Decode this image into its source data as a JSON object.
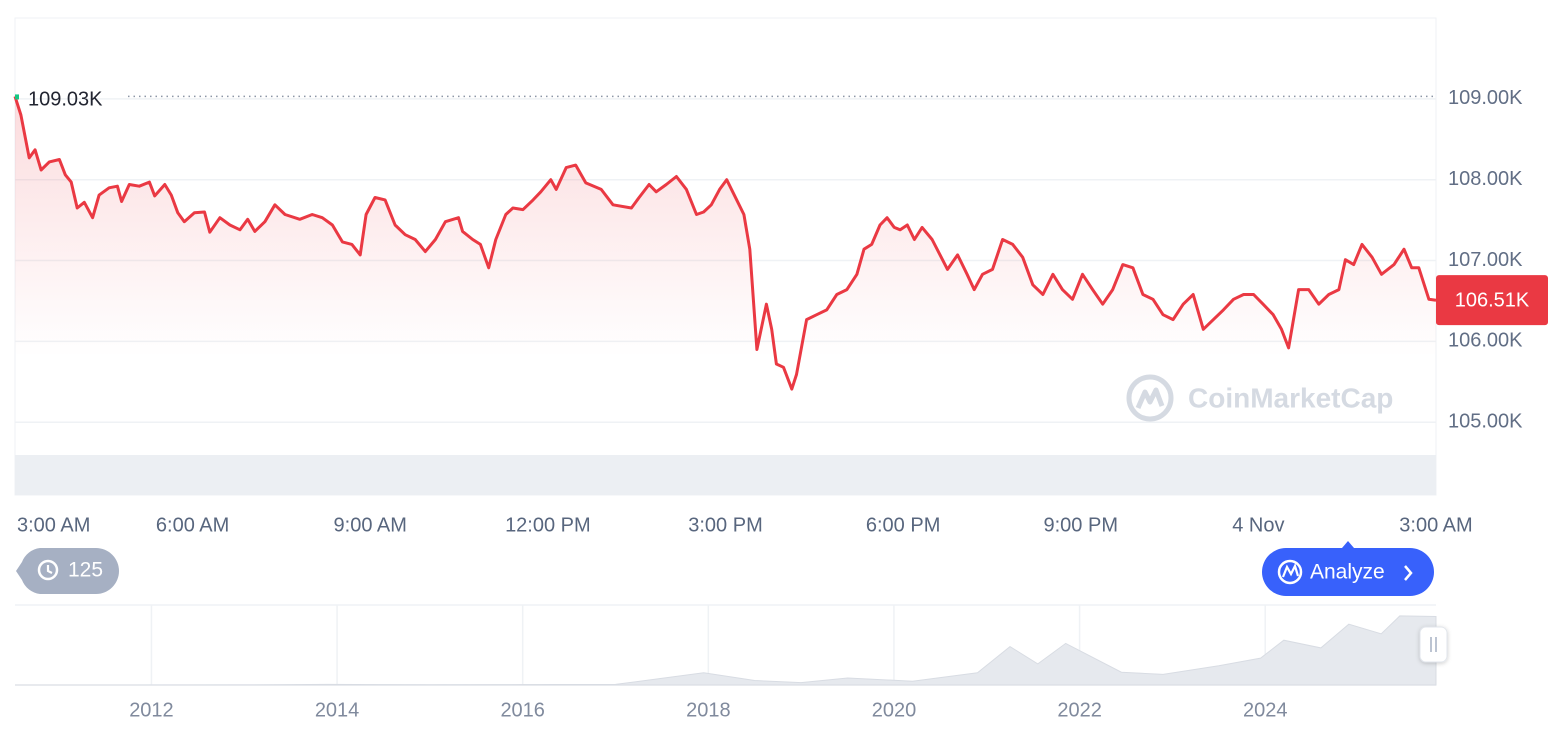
{
  "chart_data": [
    {
      "type": "line",
      "color": "#ea3943",
      "x": [
        0.0,
        0.1,
        0.24,
        0.34,
        0.44,
        0.58,
        0.75,
        0.85,
        0.95,
        1.05,
        1.17,
        1.31,
        1.42,
        1.59,
        1.73,
        1.8,
        1.93,
        2.1,
        2.27,
        2.36,
        2.53,
        2.64,
        2.75,
        2.86,
        3.03,
        3.2,
        3.29,
        3.46,
        3.63,
        3.8,
        3.93,
        4.05,
        4.22,
        4.39,
        4.56,
        4.81,
        5.02,
        5.19,
        5.36,
        5.53,
        5.69,
        5.83,
        5.93,
        6.08,
        6.25,
        6.42,
        6.59,
        6.76,
        6.93,
        7.1,
        7.27,
        7.49,
        7.56,
        7.73,
        7.86,
        8.0,
        8.12,
        8.29,
        8.41,
        8.58,
        8.75,
        8.88,
        9.05,
        9.14,
        9.31,
        9.47,
        9.64,
        9.9,
        10.1,
        10.41,
        10.54,
        10.71,
        10.83,
        11.0,
        11.17,
        11.34,
        11.51,
        11.63,
        11.76,
        11.9,
        12.02,
        12.19,
        12.31,
        12.41,
        12.53,
        12.69,
        12.78,
        12.86,
        12.98,
        13.12,
        13.2,
        13.37,
        13.54,
        13.71,
        13.88,
        14.05,
        14.22,
        14.34,
        14.47,
        14.61,
        14.73,
        14.85,
        14.95,
        15.07,
        15.19,
        15.32,
        15.49,
        15.75,
        15.92,
        16.08,
        16.2,
        16.34,
        16.51,
        16.68,
        16.85,
        17.02,
        17.19,
        17.36,
        17.53,
        17.69,
        17.86,
        18.03,
        18.2,
        18.37,
        18.54,
        18.71,
        18.88,
        19.05,
        19.22,
        19.39,
        19.56,
        19.73,
        19.9,
        20.07,
        20.24,
        20.41,
        20.58,
        20.75,
        20.92,
        21.08,
        21.25,
        21.39,
        21.51,
        21.68,
        21.85,
        22.02,
        22.19,
        22.36,
        22.47,
        22.61,
        22.75,
        22.92,
        23.08,
        23.29,
        23.46,
        23.59,
        23.71,
        23.88,
        24.0
      ],
      "values": [
        109030,
        108800,
        108270,
        108370,
        108120,
        108220,
        108250,
        108060,
        107970,
        107650,
        107720,
        107530,
        107810,
        107900,
        107920,
        107730,
        107940,
        107920,
        107970,
        107800,
        107940,
        107810,
        107590,
        107480,
        107590,
        107600,
        107350,
        107530,
        107440,
        107380,
        107510,
        107360,
        107480,
        107690,
        107570,
        107510,
        107570,
        107530,
        107440,
        107230,
        107200,
        107070,
        107570,
        107780,
        107750,
        107440,
        107320,
        107260,
        107110,
        107260,
        107480,
        107530,
        107360,
        107260,
        107200,
        106910,
        107260,
        107570,
        107650,
        107630,
        107750,
        107850,
        108000,
        107880,
        108150,
        108180,
        107960,
        107880,
        107690,
        107650,
        107780,
        107940,
        107850,
        107940,
        108040,
        107880,
        107570,
        107600,
        107690,
        107880,
        108000,
        107750,
        107570,
        107140,
        105900,
        106460,
        106150,
        105720,
        105680,
        105410,
        105590,
        106270,
        106330,
        106390,
        106580,
        106640,
        106830,
        107140,
        107200,
        107440,
        107530,
        107410,
        107380,
        107440,
        107260,
        107410,
        107260,
        106890,
        107070,
        106830,
        106640,
        106830,
        106890,
        107260,
        107200,
        107040,
        106700,
        106580,
        106830,
        106640,
        106520,
        106830,
        106640,
        106460,
        106640,
        106950,
        106910,
        106580,
        106520,
        106330,
        106270,
        106460,
        106580,
        106150,
        106270,
        106390,
        106520,
        106580,
        106580,
        106460,
        106330,
        106150,
        105920,
        106640,
        106640,
        106460,
        106580,
        106640,
        107010,
        106950,
        107200,
        107040,
        106830,
        106950,
        107140,
        106910,
        106910,
        106520,
        106510
      ],
      "xlim": [
        0,
        24
      ],
      "xticks": [
        {
          "value": 0,
          "label": "3:00 AM"
        },
        {
          "value": 3,
          "label": "6:00 AM"
        },
        {
          "value": 6,
          "label": "9:00 AM"
        },
        {
          "value": 9,
          "label": "12:00 PM"
        },
        {
          "value": 12,
          "label": "3:00 PM"
        },
        {
          "value": 15,
          "label": "6:00 PM"
        },
        {
          "value": 18,
          "label": "9:00 PM"
        },
        {
          "value": 21,
          "label": "4 Nov"
        },
        {
          "value": 24,
          "label": "3:00 AM"
        }
      ],
      "ylim": [
        104100,
        110000
      ],
      "yticks": [
        {
          "value": 105000,
          "label": "105.00K"
        },
        {
          "value": 106000,
          "label": "106.00K"
        },
        {
          "value": 107000,
          "label": "107.00K"
        },
        {
          "value": 108000,
          "label": "108.00K"
        },
        {
          "value": 109000,
          "label": "109.00K"
        }
      ],
      "grid": true,
      "annotations": [
        {
          "value": 109030,
          "label": "109.03K"
        },
        {
          "value": 106510,
          "label": "106.51K"
        }
      ]
    },
    {
      "type": "area",
      "color": "#e6e9ee",
      "x": [
        2010.53,
        2013.0,
        2013.9,
        2015.0,
        2017.0,
        2017.95,
        2018.5,
        2019.0,
        2019.5,
        2020.2,
        2020.9,
        2021.25,
        2021.55,
        2021.85,
        2022.45,
        2022.9,
        2023.5,
        2023.95,
        2024.2,
        2024.6,
        2024.9,
        2025.25,
        2025.45,
        2025.84
      ],
      "values": [
        0,
        100,
        1000,
        300,
        1000,
        19000,
        7000,
        3800,
        11000,
        6000,
        19000,
        60000,
        33000,
        65000,
        20000,
        16500,
        30000,
        42000,
        70000,
        58000,
        95000,
        80000,
        108000,
        107000
      ],
      "xlim": [
        2010.53,
        2025.84
      ],
      "xticks": [
        2012,
        2014,
        2016,
        2018,
        2020,
        2022,
        2024
      ],
      "ylim": [
        0,
        125000
      ]
    }
  ],
  "ui": {
    "watermark": "CoinMarketCap",
    "history_count": 125,
    "analyze_button": "Analyze"
  }
}
